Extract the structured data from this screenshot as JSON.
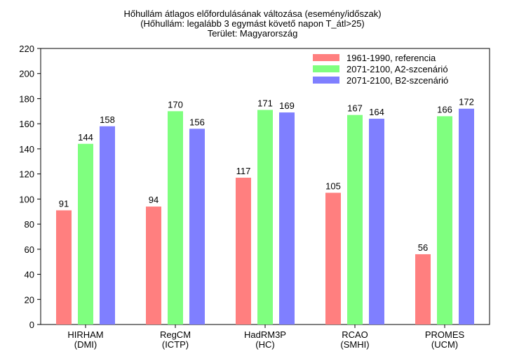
{
  "chart_data": {
    "type": "bar",
    "title": [
      "Hőhullám átlagos előfordulásának változása (esemény/időszak)",
      "(Hőhullám: legalább 3 egymást követő napon T_átl>25)",
      "Terület: Magyarország"
    ],
    "categories": [
      [
        "HIRHAM",
        "(DMI)"
      ],
      [
        "RegCM",
        "(ICTP)"
      ],
      [
        "HadRM3P",
        "(HC)"
      ],
      [
        "RCAO",
        "(SMHI)"
      ],
      [
        "PROMES",
        "(UCM)"
      ]
    ],
    "series": [
      {
        "name": "1961-1990, referencia",
        "color": "#ff7f7f",
        "values": [
          91,
          94,
          117,
          105,
          56
        ]
      },
      {
        "name": "2071-2100, A2-szcenárió",
        "color": "#7fff7f",
        "values": [
          144,
          170,
          171,
          167,
          166
        ]
      },
      {
        "name": "2071-2100, B2-szcenárió",
        "color": "#7f7fff",
        "values": [
          158,
          156,
          169,
          164,
          172
        ]
      }
    ],
    "ylim": [
      0,
      220
    ],
    "yticks": [
      0,
      20,
      40,
      60,
      80,
      100,
      120,
      140,
      160,
      180,
      200,
      220
    ],
    "xlabel": "",
    "ylabel": "",
    "grid": false,
    "legend_position": "top-right"
  }
}
